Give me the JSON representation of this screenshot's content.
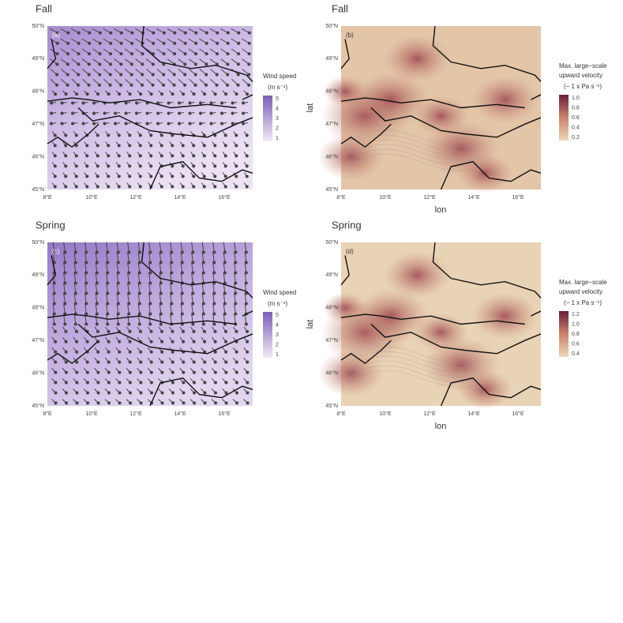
{
  "panels": [
    {
      "title": "Fall",
      "tag": "(a)",
      "kind": "wind",
      "yticks": [
        "50°N",
        "49°N",
        "48°N",
        "47°N",
        "46°N",
        "45°N"
      ],
      "xticks": [
        "8°E",
        "10°E",
        "12°E",
        "14°E",
        "16°E"
      ],
      "legend": {
        "title": [
          "Wind speed"
        ],
        "unit": "(m s⁻¹)",
        "ticks": [
          "5",
          "4",
          "3",
          "2",
          "1"
        ]
      }
    },
    {
      "title": "Fall",
      "tag": "(b)",
      "kind": "velocity",
      "yticks": [
        "50°N",
        "49°N",
        "48°N",
        "47°N",
        "46°N",
        "45°N"
      ],
      "xticks": [
        "8°E",
        "10°E",
        "12°E",
        "14°E",
        "16°E"
      ],
      "xlabel": "lon",
      "ylabel": "lat",
      "legend": {
        "title": [
          "Max. large−scale",
          "upward velocity"
        ],
        "unit": "(− 1 x Pa s⁻¹)",
        "ticks": [
          "1.0",
          "0.8",
          "0.6",
          "0.4",
          "0.2"
        ]
      }
    },
    {
      "title": "Spring",
      "tag": "(c)",
      "kind": "wind",
      "yticks": [
        "50°N",
        "49°N",
        "48°N",
        "47°N",
        "46°N",
        "45°N"
      ],
      "xticks": [
        "8°E",
        "10°E",
        "12°E",
        "14°E",
        "16°E"
      ],
      "legend": {
        "title": [
          "Wind speed"
        ],
        "unit": "(m s⁻¹)",
        "ticks": [
          "5",
          "4",
          "3",
          "2",
          "1"
        ]
      }
    },
    {
      "title": "Spring",
      "tag": "(d)",
      "kind": "velocity",
      "yticks": [
        "50°N",
        "49°N",
        "48°N",
        "47°N",
        "46°N",
        "45°N"
      ],
      "xticks": [
        "8°E",
        "10°E",
        "12°E",
        "14°E",
        "16°E"
      ],
      "xlabel": "lon",
      "ylabel": "lat",
      "legend": {
        "title": [
          "Max. large−scale",
          "upward velocity"
        ],
        "unit": "(− 1 x Pa s⁻¹)",
        "ticks": [
          "1.2",
          "1.0",
          "0.8",
          "0.6",
          "0.4"
        ]
      }
    }
  ]
}
